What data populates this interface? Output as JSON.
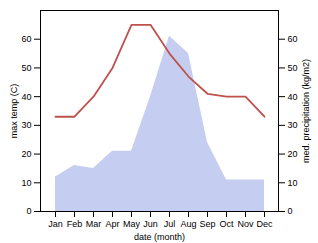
{
  "chart_data": {
    "type": "line",
    "categories": [
      "Jan",
      "Feb",
      "Mar",
      "Apr",
      "May",
      "Jun",
      "Jul",
      "Aug",
      "Sep",
      "Oct",
      "Nov",
      "Dec"
    ],
    "xlabel": "date (month)",
    "ylabel": "max temp (C)",
    "y2label": "med. precipitation (kg/m2)",
    "series": [
      {
        "type": "area",
        "axis": "y2",
        "color": "#c5cef0",
        "values": [
          12,
          16,
          15,
          21,
          21,
          40,
          61,
          55,
          24,
          11,
          11,
          11
        ]
      },
      {
        "type": "line",
        "color": "#c0504d",
        "values": [
          33,
          33,
          40,
          50,
          65,
          65,
          55,
          47,
          41,
          40,
          40,
          33
        ]
      }
    ],
    "ylim": [
      0,
      70
    ],
    "yticks": [
      0,
      10,
      20,
      30,
      40,
      50,
      60
    ],
    "y2lim": [
      0,
      70
    ],
    "y2ticks": [
      0,
      10,
      20,
      30,
      40,
      50,
      60
    ],
    "grid": false
  }
}
